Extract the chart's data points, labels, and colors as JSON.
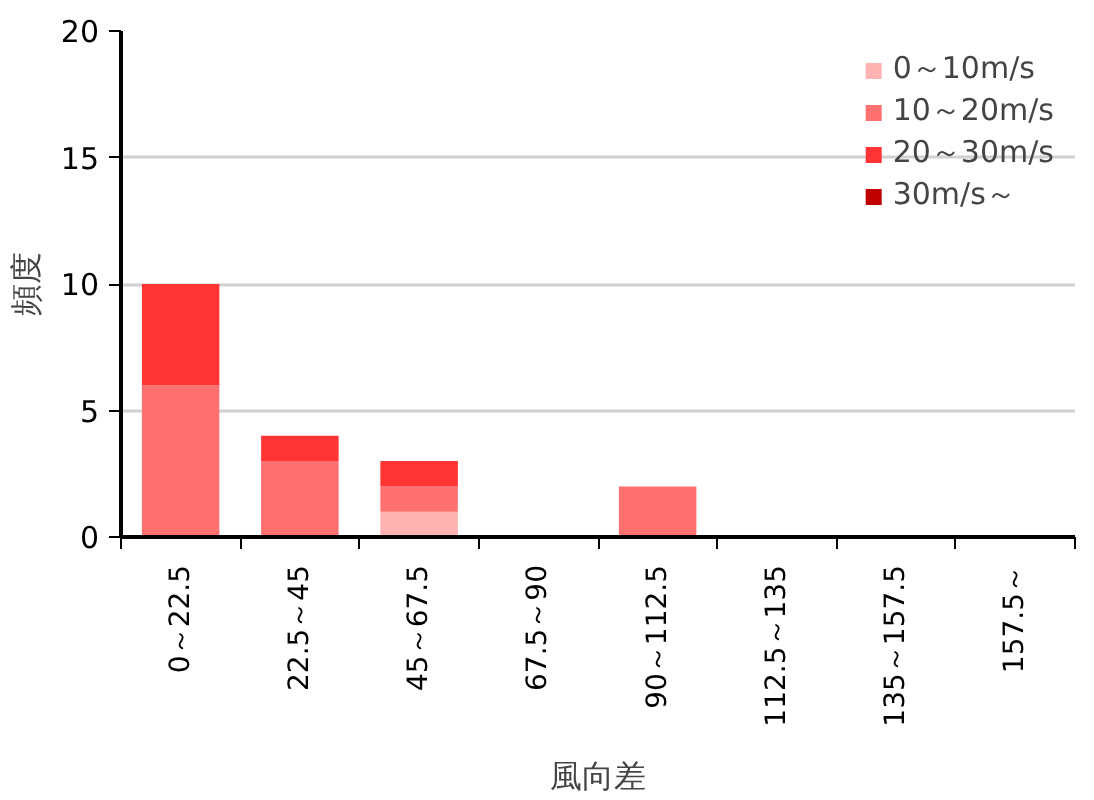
{
  "chart_data": {
    "type": "bar",
    "stacked": true,
    "xlabel": "風向差",
    "ylabel": "頻度",
    "categories": [
      "0～22.5",
      "22.5～45",
      "45～67.5",
      "67.5～90",
      "90～112.5",
      "112.5～135",
      "135～157.5",
      "157.5～"
    ],
    "series": [
      {
        "name": "0～10m/s",
        "color": "#ffb3b3",
        "values": [
          0,
          0,
          1,
          0,
          0,
          0,
          0,
          0
        ]
      },
      {
        "name": "10～20m/s",
        "color": "#ff7070",
        "values": [
          6,
          3,
          1,
          0,
          2,
          0,
          0,
          0
        ]
      },
      {
        "name": "20～30m/s",
        "color": "#ff3535",
        "values": [
          4,
          1,
          1,
          0,
          0,
          0,
          0,
          0
        ]
      },
      {
        "name": "30m/s～",
        "color": "#c00000",
        "values": [
          0,
          0,
          0,
          0,
          0,
          0,
          0,
          0
        ]
      }
    ],
    "ylim": [
      0,
      20
    ],
    "yticks": [
      0,
      5,
      10,
      15,
      20
    ],
    "grid": "y",
    "legend": "top right"
  }
}
